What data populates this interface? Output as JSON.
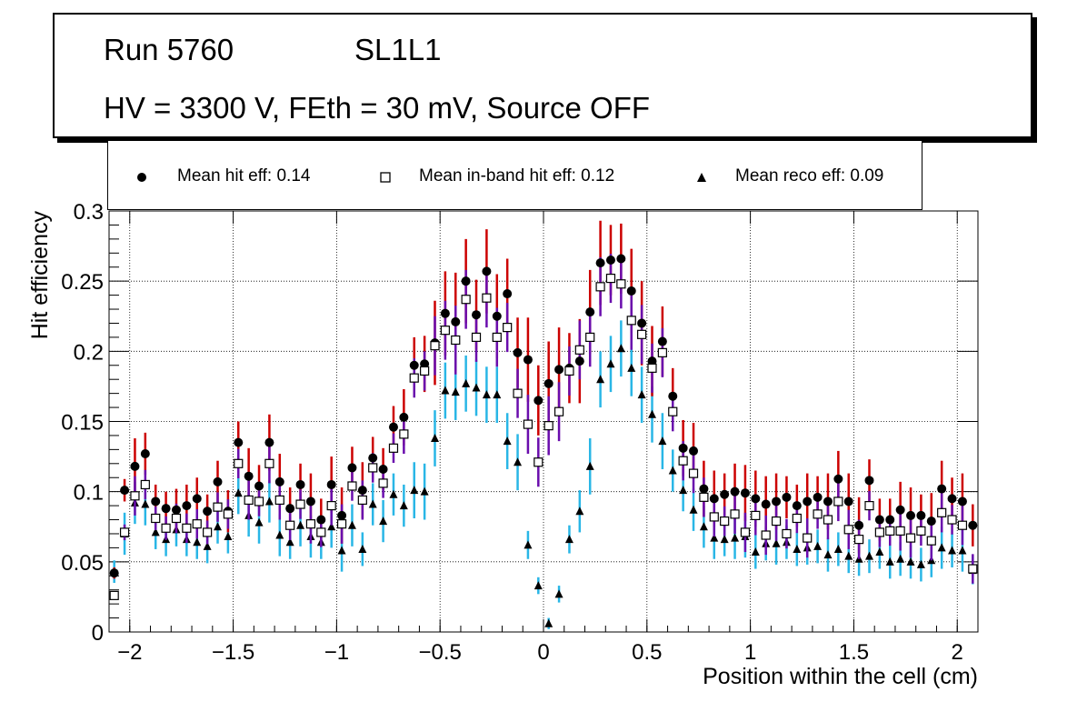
{
  "header": {
    "run_label": "Run 5760",
    "layer_label": "SL1L1",
    "conditions": "HV = 3300 V, FEth = 30 mV, Source OFF"
  },
  "legend": {
    "hit": "Mean hit  eff: 0.14",
    "inband": "Mean in-band hit eff: 0.12",
    "reco": "Mean reco eff: 0.09"
  },
  "colors": {
    "hit_error": "#cc0000",
    "inband_error": "#6a0dad",
    "reco_error": "#29b6e6",
    "marker": "#000000"
  },
  "chart_data": {
    "type": "scatter",
    "title": "",
    "xlabel": "Position within the cell (cm)",
    "ylabel": "Hit efficiency",
    "xlim": [
      -2.1,
      2.1
    ],
    "ylim": [
      0,
      0.3
    ],
    "grid": true,
    "xticks": [
      -2,
      -1.5,
      -1,
      -0.5,
      0,
      0.5,
      1,
      1.5,
      2
    ],
    "xtick_labels": [
      "−2",
      "−1.5",
      "−1",
      "−0.5",
      "0",
      "0.5",
      "1",
      "1.5",
      "2"
    ],
    "yticks": [
      0,
      0.05,
      0.1,
      0.15,
      0.2,
      0.25,
      0.3
    ],
    "ytick_labels": [
      "0",
      "0.05",
      "0.1",
      "0.15",
      "0.2",
      "0.25",
      "0.3"
    ],
    "x": [
      -2.075,
      -2.025,
      -1.975,
      -1.925,
      -1.875,
      -1.825,
      -1.775,
      -1.725,
      -1.675,
      -1.625,
      -1.575,
      -1.525,
      -1.475,
      -1.425,
      -1.375,
      -1.325,
      -1.275,
      -1.225,
      -1.175,
      -1.125,
      -1.075,
      -1.025,
      -0.975,
      -0.925,
      -0.875,
      -0.825,
      -0.775,
      -0.725,
      -0.675,
      -0.625,
      -0.575,
      -0.525,
      -0.475,
      -0.425,
      -0.375,
      -0.325,
      -0.275,
      -0.225,
      -0.175,
      -0.125,
      -0.075,
      -0.025,
      0.025,
      0.075,
      0.125,
      0.175,
      0.225,
      0.275,
      0.325,
      0.375,
      0.425,
      0.475,
      0.525,
      0.575,
      0.625,
      0.675,
      0.725,
      0.775,
      0.825,
      0.875,
      0.925,
      0.975,
      1.025,
      1.075,
      1.125,
      1.175,
      1.225,
      1.275,
      1.325,
      1.375,
      1.425,
      1.475,
      1.525,
      1.575,
      1.625,
      1.675,
      1.725,
      1.775,
      1.825,
      1.875,
      1.925,
      1.975,
      2.025,
      2.075
    ],
    "series": [
      {
        "name": "Mean hit  eff: 0.14",
        "marker": "circle",
        "values": [
          0.042,
          0.101,
          0.118,
          0.127,
          0.093,
          0.088,
          0.087,
          0.09,
          0.095,
          0.086,
          0.107,
          0.086,
          0.135,
          0.111,
          0.104,
          0.135,
          0.107,
          0.088,
          0.105,
          0.093,
          0.08,
          0.105,
          0.083,
          0.117,
          0.101,
          0.124,
          0.116,
          0.146,
          0.153,
          0.19,
          0.191,
          0.206,
          0.227,
          0.221,
          0.25,
          0.226,
          0.257,
          0.225,
          0.241,
          0.199,
          0.194,
          0.165,
          0.177,
          0.187,
          0.188,
          0.193,
          0.228,
          0.263,
          0.265,
          0.266,
          0.243,
          0.22,
          0.193,
          0.207,
          0.168,
          0.131,
          0.129,
          0.102,
          0.095,
          0.098,
          0.1,
          0.099,
          0.095,
          0.091,
          0.093,
          0.096,
          0.09,
          0.093,
          0.096,
          0.093,
          0.109,
          0.093,
          0.076,
          0.108,
          0.08,
          0.08,
          0.087,
          0.083,
          0.083,
          0.079,
          0.102,
          0.095,
          0.093,
          0.076
        ],
        "errors": [
          0.004,
          0.008,
          0.02,
          0.015,
          0.012,
          0.012,
          0.015,
          0.015,
          0.015,
          0.012,
          0.015,
          0.015,
          0.015,
          0.02,
          0.015,
          0.02,
          0.02,
          0.015,
          0.015,
          0.02,
          0.015,
          0.02,
          0.02,
          0.015,
          0.02,
          0.015,
          0.015,
          0.015,
          0.02,
          0.02,
          0.02,
          0.03,
          0.03,
          0.035,
          0.03,
          0.025,
          0.03,
          0.03,
          0.025,
          0.025,
          0.03,
          0.025,
          0.03,
          0.03,
          0.025,
          0.03,
          0.03,
          0.03,
          0.025,
          0.025,
          0.03,
          0.03,
          0.025,
          0.025,
          0.02,
          0.02,
          0.02,
          0.02,
          0.02,
          0.015,
          0.02,
          0.02,
          0.02,
          0.02,
          0.02,
          0.015,
          0.015,
          0.02,
          0.015,
          0.02,
          0.02,
          0.02,
          0.02,
          0.015,
          0.015,
          0.015,
          0.02,
          0.02,
          0.015,
          0.02,
          0.02,
          0.015,
          0.02,
          0.015
        ]
      },
      {
        "name": "Mean in-band hit eff: 0.12",
        "marker": "open-square",
        "values": [
          0.026,
          0.071,
          0.097,
          0.105,
          0.081,
          0.074,
          0.081,
          0.074,
          0.077,
          0.071,
          0.089,
          0.084,
          0.12,
          0.094,
          0.093,
          0.12,
          0.094,
          0.076,
          0.091,
          0.077,
          0.071,
          0.09,
          0.077,
          0.104,
          0.094,
          0.117,
          0.106,
          0.131,
          0.141,
          0.181,
          0.186,
          0.204,
          0.215,
          0.208,
          0.237,
          0.21,
          0.238,
          0.21,
          0.217,
          0.17,
          0.148,
          0.121,
          0.147,
          0.157,
          0.186,
          0.201,
          0.21,
          0.246,
          0.252,
          0.248,
          0.222,
          0.212,
          0.188,
          0.199,
          0.157,
          0.122,
          0.113,
          0.096,
          0.082,
          0.079,
          0.084,
          0.071,
          0.083,
          0.069,
          0.079,
          0.07,
          0.081,
          0.067,
          0.084,
          0.08,
          0.093,
          0.073,
          0.066,
          0.09,
          0.071,
          0.072,
          0.072,
          0.067,
          0.072,
          0.065,
          0.085,
          0.08,
          0.076,
          0.045
        ]
      },
      {
        "name": "Mean reco eff: 0.09",
        "marker": "triangle",
        "values": [
          0.043,
          0.07,
          0.092,
          0.091,
          0.071,
          0.066,
          0.073,
          0.066,
          0.064,
          0.061,
          0.075,
          0.068,
          0.099,
          0.083,
          0.078,
          0.093,
          0.069,
          0.064,
          0.076,
          0.068,
          0.064,
          0.075,
          0.058,
          0.076,
          0.059,
          0.091,
          0.079,
          0.098,
          0.09,
          0.101,
          0.1,
          0.138,
          0.172,
          0.171,
          0.177,
          0.174,
          0.169,
          0.169,
          0.136,
          0.121,
          0.062,
          0.033,
          0.006,
          0.027,
          0.066,
          0.086,
          0.118,
          0.18,
          0.191,
          0.202,
          0.188,
          0.169,
          0.155,
          0.136,
          0.115,
          0.101,
          0.087,
          0.075,
          0.067,
          0.066,
          0.067,
          0.068,
          0.057,
          0.063,
          0.063,
          0.064,
          0.059,
          0.06,
          0.061,
          0.055,
          0.059,
          0.054,
          0.052,
          0.054,
          0.057,
          0.05,
          0.052,
          0.05,
          0.048,
          0.051,
          0.06,
          0.058,
          0.058,
          0.044
        ],
        "errors": [
          0.008,
          0.015,
          0.015,
          0.015,
          0.012,
          0.012,
          0.012,
          0.012,
          0.012,
          0.012,
          0.012,
          0.012,
          0.015,
          0.015,
          0.015,
          0.015,
          0.015,
          0.012,
          0.015,
          0.015,
          0.012,
          0.015,
          0.015,
          0.015,
          0.012,
          0.015,
          0.015,
          0.015,
          0.015,
          0.02,
          0.02,
          0.02,
          0.02,
          0.02,
          0.02,
          0.02,
          0.02,
          0.02,
          0.02,
          0.02,
          0.01,
          0.006,
          0.004,
          0.006,
          0.01,
          0.015,
          0.02,
          0.02,
          0.02,
          0.02,
          0.02,
          0.02,
          0.02,
          0.02,
          0.015,
          0.015,
          0.015,
          0.015,
          0.015,
          0.012,
          0.015,
          0.015,
          0.012,
          0.012,
          0.015,
          0.012,
          0.012,
          0.012,
          0.012,
          0.012,
          0.012,
          0.012,
          0.012,
          0.012,
          0.012,
          0.012,
          0.012,
          0.012,
          0.012,
          0.012,
          0.015,
          0.012,
          0.015,
          0.01
        ]
      }
    ]
  }
}
